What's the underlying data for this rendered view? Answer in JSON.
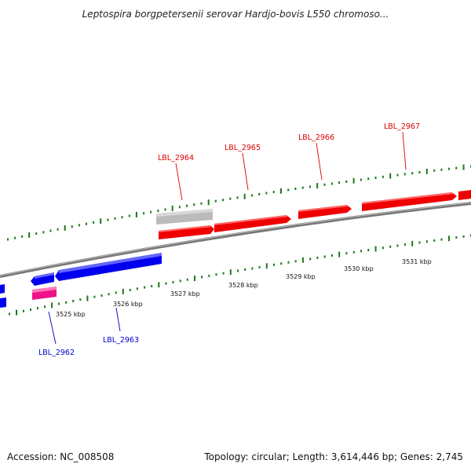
{
  "title": "Leptospira borgpetersenii serovar Hardjo-bovis L550 chromoso...",
  "footer": {
    "accession": "Accession: NC_008508",
    "summary": "Topology: circular; Length: 3,614,446 bp; Genes: 2,745"
  },
  "colors": {
    "forward_gene": "#ee0000",
    "reverse_gene": "#0000ee",
    "forward_label": "#dd0000",
    "reverse_label": "#0000cc",
    "pink_feature": "#ee1188",
    "gray_feature": "#bbbbbb",
    "tick": "#1a7a1a",
    "axis": "#777777"
  },
  "ticks": [
    {
      "label": "3525 kbp"
    },
    {
      "label": "3526 kbp"
    },
    {
      "label": "3527 kbp"
    },
    {
      "label": "3528 kbp"
    },
    {
      "label": "3529 kbp"
    },
    {
      "label": "3530 kbp"
    },
    {
      "label": "3531 kbp"
    }
  ],
  "gene_labels": [
    {
      "name": "LBL_2962",
      "strand": "reverse"
    },
    {
      "name": "LBL_2963",
      "strand": "reverse"
    },
    {
      "name": "LBL_2964",
      "strand": "forward"
    },
    {
      "name": "LBL_2965",
      "strand": "forward"
    },
    {
      "name": "LBL_2966",
      "strand": "forward"
    },
    {
      "name": "LBL_2967",
      "strand": "forward"
    }
  ]
}
